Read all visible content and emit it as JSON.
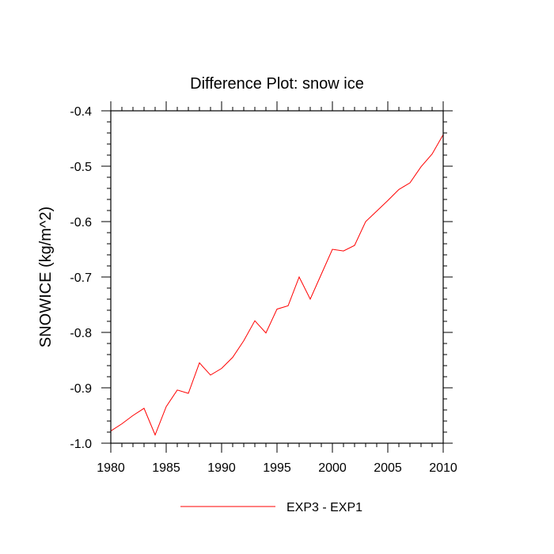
{
  "chart_data": {
    "type": "line",
    "title": "Difference Plot: snow ice",
    "xlabel": "",
    "ylabel": "SNOWICE  (kg/m^2)",
    "xlim": [
      1980,
      2010
    ],
    "ylim": [
      -1.0,
      -0.4
    ],
    "x_ticks": [
      1980,
      1985,
      1990,
      1995,
      2000,
      2005,
      2010
    ],
    "x_tick_labels": [
      "1980",
      "1985",
      "1990",
      "1995",
      "2000",
      "2005",
      "2010"
    ],
    "y_ticks": [
      -0.4,
      -0.5,
      -0.6,
      -0.7,
      -0.8,
      -0.9,
      -1.0
    ],
    "y_tick_labels": [
      "-0.4",
      "-0.5",
      "-0.6",
      "-0.7",
      "-0.8",
      "-0.9",
      "-1.0"
    ],
    "grid": false,
    "legend_position": "bottom-center",
    "series": [
      {
        "name": "EXP3 - EXP1",
        "color": "#ff0000",
        "x": [
          1980,
          1981,
          1982,
          1983,
          1984,
          1985,
          1986,
          1987,
          1988,
          1989,
          1990,
          1991,
          1992,
          1993,
          1994,
          1995,
          1996,
          1997,
          1998,
          1999,
          2000,
          2001,
          2002,
          2003,
          2004,
          2005,
          2006,
          2007,
          2008,
          2009,
          2010
        ],
        "values": [
          -0.978,
          -0.965,
          -0.95,
          -0.937,
          -0.985,
          -0.934,
          -0.904,
          -0.91,
          -0.855,
          -0.877,
          -0.865,
          -0.845,
          -0.815,
          -0.779,
          -0.801,
          -0.758,
          -0.752,
          -0.7,
          -0.74,
          -0.695,
          -0.65,
          -0.653,
          -0.643,
          -0.6,
          -0.581,
          -0.562,
          -0.542,
          -0.53,
          -0.501,
          -0.478,
          -0.443
        ]
      }
    ]
  }
}
